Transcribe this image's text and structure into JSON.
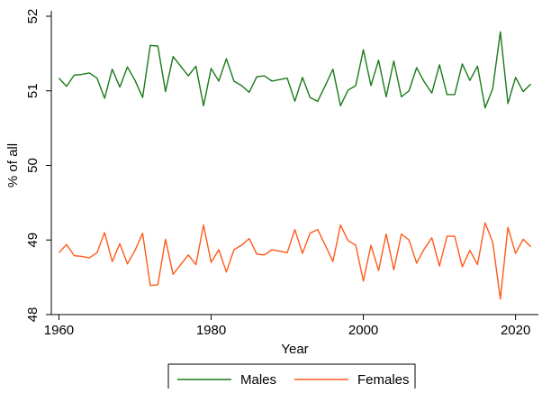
{
  "chart_data": {
    "type": "line",
    "xlabel": "Year",
    "ylabel": "% of all",
    "xlim": [
      1959,
      2023
    ],
    "ylim": [
      48,
      52
    ],
    "xticks": [
      1960,
      1980,
      2000,
      2020
    ],
    "yticks": [
      48,
      49,
      50,
      51,
      52
    ],
    "grid": false,
    "legend_position": "bottom",
    "x": [
      1960,
      1961,
      1962,
      1963,
      1964,
      1965,
      1966,
      1967,
      1968,
      1969,
      1970,
      1971,
      1972,
      1973,
      1974,
      1975,
      1976,
      1977,
      1978,
      1979,
      1980,
      1981,
      1982,
      1983,
      1984,
      1985,
      1986,
      1987,
      1988,
      1989,
      1990,
      1991,
      1992,
      1993,
      1994,
      1995,
      1996,
      1997,
      1998,
      1999,
      2000,
      2001,
      2002,
      2003,
      2004,
      2005,
      2006,
      2007,
      2008,
      2009,
      2010,
      2011,
      2012,
      2013,
      2014,
      2015,
      2016,
      2017,
      2018,
      2019,
      2020,
      2021,
      2022
    ],
    "series": [
      {
        "name": "Males",
        "color": "#1a7a1a",
        "values": [
          51.17,
          51.06,
          51.21,
          51.22,
          51.24,
          51.17,
          50.9,
          51.29,
          51.05,
          51.32,
          51.14,
          50.91,
          51.61,
          51.6,
          50.99,
          51.46,
          51.33,
          51.2,
          51.33,
          50.8,
          51.3,
          51.13,
          51.43,
          51.13,
          51.07,
          50.98,
          51.19,
          51.2,
          51.13,
          51.15,
          51.17,
          50.86,
          51.18,
          50.91,
          50.86,
          51.07,
          51.29,
          50.8,
          51.01,
          51.07,
          51.55,
          51.07,
          51.41,
          50.92,
          51.4,
          50.92,
          51.0,
          51.31,
          51.12,
          50.97,
          51.35,
          50.95,
          50.95,
          51.36,
          51.14,
          51.33,
          50.77,
          51.03,
          51.79,
          50.83,
          51.18,
          50.99,
          51.09
        ]
      },
      {
        "name": "Females",
        "color": "#ff5a1a",
        "values": [
          48.83,
          48.94,
          48.79,
          48.78,
          48.76,
          48.83,
          49.1,
          48.71,
          48.95,
          48.68,
          48.86,
          49.09,
          48.39,
          48.4,
          49.01,
          48.54,
          48.67,
          48.8,
          48.67,
          49.2,
          48.7,
          48.87,
          48.57,
          48.87,
          48.93,
          49.02,
          48.81,
          48.8,
          48.87,
          48.85,
          48.83,
          49.14,
          48.82,
          49.09,
          49.14,
          48.93,
          48.71,
          49.2,
          48.99,
          48.93,
          48.45,
          48.93,
          48.59,
          49.08,
          48.6,
          49.08,
          49.0,
          48.69,
          48.88,
          49.03,
          48.65,
          49.05,
          49.05,
          48.64,
          48.86,
          48.67,
          49.23,
          48.97,
          48.21,
          49.17,
          48.82,
          49.01,
          48.91
        ]
      }
    ]
  }
}
